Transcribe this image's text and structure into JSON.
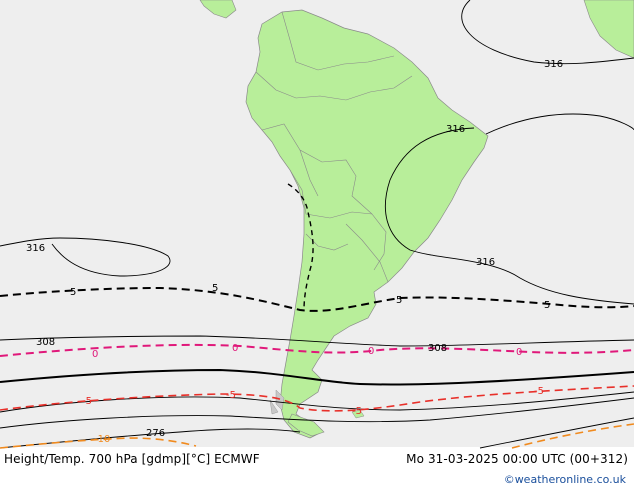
{
  "footer": {
    "title": "Height/Temp. 700 hPa [gdmp][°C] ECMWF",
    "valid_time": "Mo 31-03-2025 00:00 UTC (00+312)",
    "credit": "©weatheronline.co.uk"
  },
  "contour_labels": {
    "h316_ne": "316",
    "h316_brazil": "316",
    "h316_west": "316",
    "h316_south": "316",
    "h308_west": "308",
    "h308_east": "308",
    "h276": "276",
    "t5_a": "5",
    "t5_b": "5",
    "t5_c": "5",
    "t5_d": "5",
    "t0_a": "0",
    "t0_b": "0",
    "t0_c": "0",
    "t0_d": "0",
    "tm5_a": "-5",
    "tm5_b": "-5",
    "tm5_c": "-5",
    "tm5_d": "-5",
    "tm10": "-10"
  },
  "colors": {
    "ocean": "#eeeeee",
    "land": "#b8ee9a",
    "border": "#8a8a8a",
    "height_contour": "#000000",
    "temp_plus5": "#000000",
    "temp_zero": "#e0187a",
    "temp_minus5": "#e8302a",
    "temp_minus10": "#f08a1e",
    "credit": "#1a4f9c"
  }
}
